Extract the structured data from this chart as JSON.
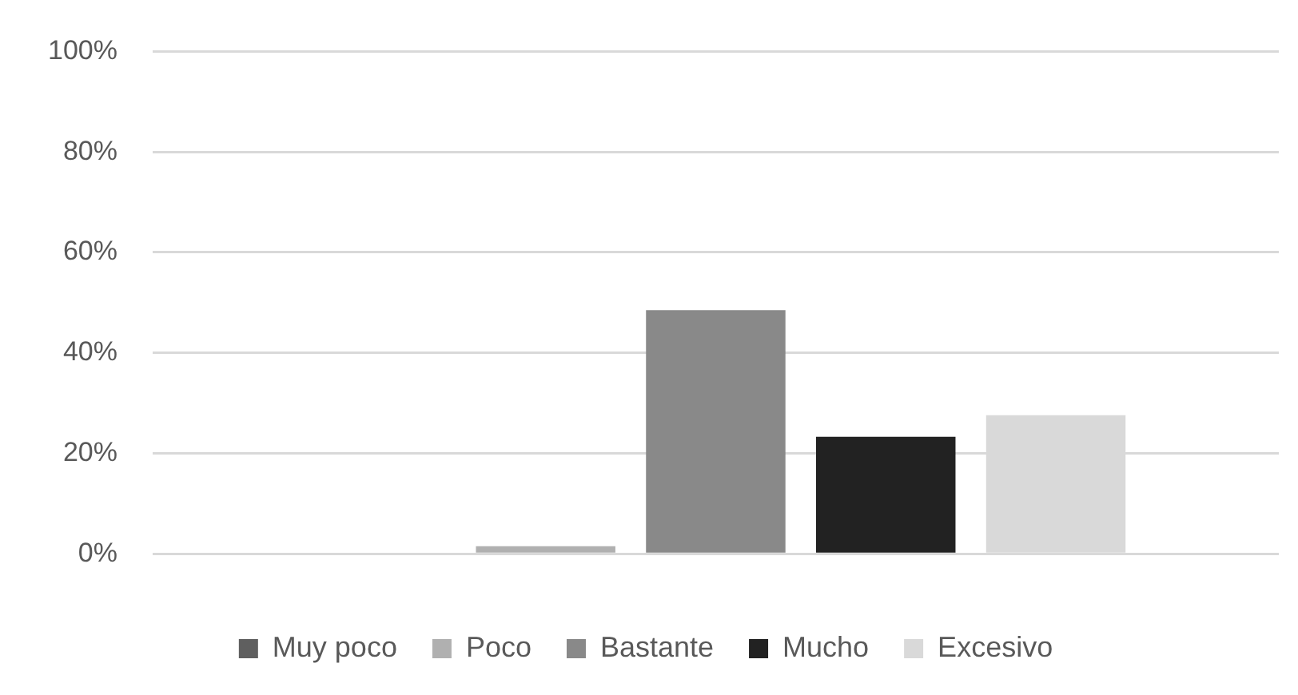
{
  "chart_data": {
    "type": "bar",
    "categories": [
      null
    ],
    "series": [
      {
        "name": "Muy poco",
        "color": "#5f5f5f",
        "values": [
          0
        ]
      },
      {
        "name": "Poco",
        "color": "#b0b0b0",
        "values": [
          1.5
        ]
      },
      {
        "name": "Bastante",
        "color": "#898989",
        "values": [
          48.5
        ]
      },
      {
        "name": "Mucho",
        "color": "#222222",
        "values": [
          23.3
        ]
      },
      {
        "name": "Excesivo",
        "color": "#d9d9d9",
        "values": [
          27.6
        ]
      }
    ],
    "ylim": [
      0,
      100
    ],
    "yticks": [
      {
        "value": 0,
        "label": "0%"
      },
      {
        "value": 20,
        "label": "20%"
      },
      {
        "value": 40,
        "label": "40%"
      },
      {
        "value": 60,
        "label": "60%"
      },
      {
        "value": 80,
        "label": "80%"
      },
      {
        "value": 100,
        "label": "100%"
      }
    ],
    "grid": "y",
    "legend": "bottom"
  }
}
